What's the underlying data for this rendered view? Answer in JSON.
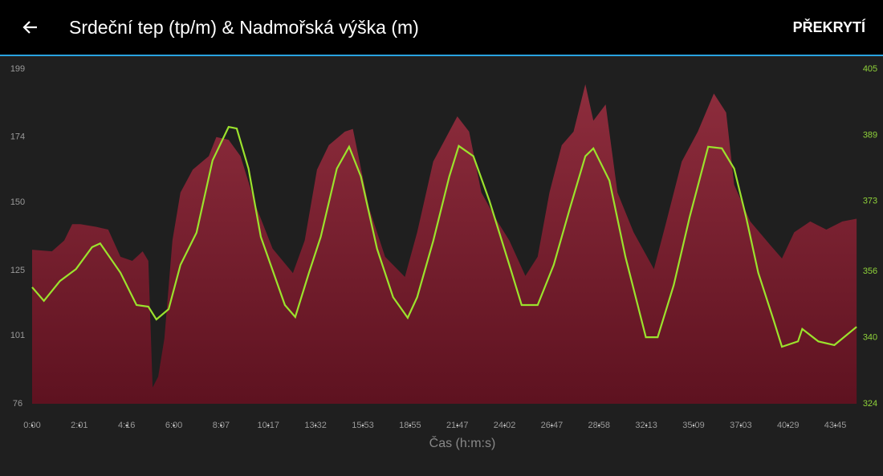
{
  "header": {
    "title": "Srdeční tep (tp/m) & Nadmořská výška (m)",
    "action": "PŘEKRYTÍ"
  },
  "chart_data": {
    "type": "area-line",
    "x_label": "Čas (h:m:s)",
    "xlim": [
      0,
      17.5
    ],
    "xticks": [
      {
        "value": 0,
        "label": "0:00"
      },
      {
        "value": 1,
        "label": "2:01"
      },
      {
        "value": 2,
        "label": "4:16"
      },
      {
        "value": 3,
        "label": "6:00"
      },
      {
        "value": 4,
        "label": "8:07"
      },
      {
        "value": 5,
        "label": "10:17"
      },
      {
        "value": 6,
        "label": "13:32"
      },
      {
        "value": 7,
        "label": "15:53"
      },
      {
        "value": 8,
        "label": "18:55"
      },
      {
        "value": 9,
        "label": "21:47"
      },
      {
        "value": 10,
        "label": "24:02"
      },
      {
        "value": 11,
        "label": "26:47"
      },
      {
        "value": 12,
        "label": "28:58"
      },
      {
        "value": 13,
        "label": "32:13"
      },
      {
        "value": 14,
        "label": "35:09"
      },
      {
        "value": 15,
        "label": "37:03"
      },
      {
        "value": 16,
        "label": "40:29"
      },
      {
        "value": 17,
        "label": "43:45"
      }
    ],
    "ylim": [
      76,
      199
    ],
    "yticks": [
      76,
      101,
      125,
      150,
      174,
      199
    ],
    "y2lim": [
      324,
      405
    ],
    "y2ticks": [
      324,
      340,
      356,
      373,
      389,
      405
    ],
    "series": [
      {
        "color": "#8a2a3a",
        "kind": "area",
        "x": [
          0,
          0.42,
          0.68,
          0.85,
          1.02,
          1.36,
          1.61,
          1.87,
          2.12,
          2.34,
          2.46,
          2.55,
          2.67,
          2.8,
          2.97,
          3.14,
          3.4,
          3.74,
          3.9,
          4.16,
          4.41,
          4.75,
          5.09,
          5.52,
          5.77,
          6.03,
          6.28,
          6.62,
          6.79,
          7.13,
          7.47,
          7.89,
          8.15,
          8.49,
          9,
          9.25,
          9.51,
          9.85,
          10.1,
          10.44,
          10.7,
          10.95,
          11.21,
          11.46,
          11.71,
          11.88,
          12.14,
          12.39,
          12.73,
          13.16,
          13.41,
          13.75,
          14.09,
          14.43,
          14.69,
          14.86,
          15.2,
          15.62,
          15.87,
          16.13,
          16.47,
          16.81,
          17.15,
          17.45
        ],
        "values": [
          132.6,
          132,
          136,
          142,
          142,
          141,
          140,
          130,
          128.5,
          132,
          128.5,
          82,
          86,
          100,
          136,
          153.6,
          162,
          167,
          174,
          173,
          167,
          148,
          133,
          124,
          136,
          162,
          171,
          176,
          177,
          148,
          130,
          122.6,
          139,
          165,
          181.6,
          176,
          153.6,
          143,
          136,
          123,
          130,
          153.6,
          171,
          176,
          193.4,
          180,
          186,
          153.6,
          139,
          125.5,
          142,
          165,
          176,
          190,
          183,
          156.5,
          143,
          134.4,
          129.4,
          139,
          143,
          140,
          143,
          144
        ]
      },
      {
        "color": "#9be22d",
        "kind": "line",
        "axis": "y2",
        "x": [
          0,
          0.25,
          0.59,
          0.93,
          1.27,
          1.44,
          1.87,
          2.21,
          2.46,
          2.63,
          2.89,
          3.14,
          3.48,
          3.82,
          4.16,
          4.33,
          4.58,
          4.84,
          5.35,
          5.57,
          5.86,
          6.11,
          6.45,
          6.71,
          6.96,
          7.3,
          7.64,
          7.95,
          8.15,
          8.49,
          8.83,
          9.03,
          9.34,
          9.68,
          10.1,
          10.36,
          10.7,
          11.04,
          11.38,
          11.71,
          11.88,
          12.22,
          12.56,
          12.99,
          13.24,
          13.58,
          13.92,
          14.31,
          14.6,
          14.86,
          15.11,
          15.37,
          15.7,
          15.87,
          16.21,
          16.3,
          16.64,
          16.98,
          17.45
        ],
        "values": [
          352.2,
          348.9,
          353.7,
          356.6,
          361.9,
          362.8,
          355.7,
          347.9,
          347.5,
          344.4,
          346.9,
          357.6,
          365.4,
          382.9,
          391,
          390.6,
          380.9,
          364.4,
          347.9,
          345,
          355.7,
          364.4,
          380.9,
          386.2,
          379,
          361.5,
          349.8,
          344.8,
          349.8,
          363.4,
          379,
          386.4,
          383.9,
          373.1,
          357.6,
          347.9,
          347.9,
          357.6,
          371.2,
          383.9,
          385.8,
          378,
          359.5,
          340.1,
          340.1,
          352.7,
          369.3,
          386.2,
          385.8,
          380.9,
          369.3,
          355.7,
          344,
          337.8,
          339.1,
          342.1,
          339.1,
          338.2,
          342.6
        ]
      }
    ]
  }
}
